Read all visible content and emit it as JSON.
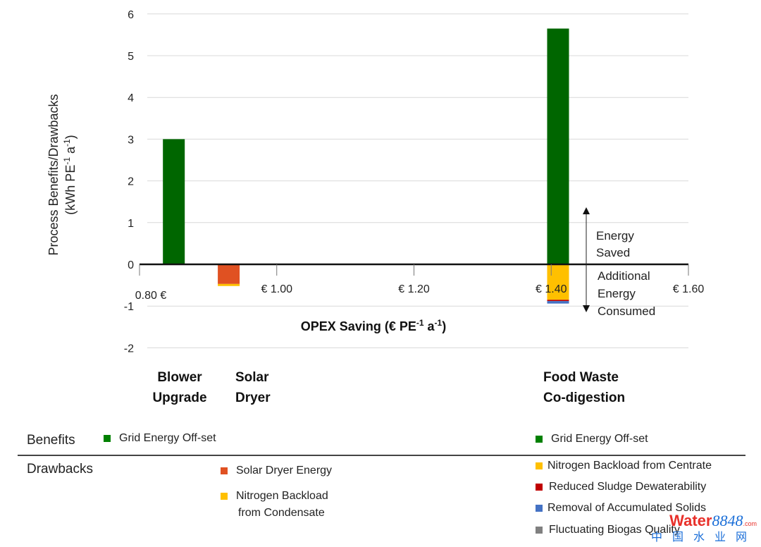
{
  "chart_data": {
    "type": "bar",
    "stacked": true,
    "title": "",
    "xlabel": "OPEX Saving  (€  PE⁻¹ a⁻¹)",
    "xlabel_parts": {
      "main": "OPEX Saving  (€  PE",
      "sup1": "-1",
      "mid": " a",
      "sup2": "-1",
      "end": ")"
    },
    "ylabel_line1": "Process Benefits/Drawbacks",
    "ylabel_line2_parts": {
      "main": "(kWh PE",
      "sup1": "-1",
      "mid": " a",
      "sup2": "-1",
      "end": ")"
    },
    "ylim": [
      -2,
      6
    ],
    "xlim": [
      0.8,
      1.6
    ],
    "yticks": [
      "6",
      "5",
      "4",
      "3",
      "2",
      "1",
      "0",
      "-1",
      "-2"
    ],
    "ytick_values": [
      6,
      5,
      4,
      3,
      2,
      1,
      0,
      -1,
      -2
    ],
    "xticks": [
      "0.80 €",
      "€ 1.00",
      "€ 1.20",
      "€ 1.40",
      "€ 1.60"
    ],
    "xtick_values": [
      0.8,
      1.0,
      1.2,
      1.4,
      1.6
    ],
    "grid": true,
    "categories": [
      "Blower Upgrade",
      "Solar Dryer",
      "Food Waste Co-digestion"
    ],
    "category_labels": [
      [
        "Blower",
        "Upgrade"
      ],
      [
        "Solar",
        "Dryer"
      ],
      [
        "Food Waste",
        "Co-digestion"
      ]
    ],
    "x": [
      0.85,
      0.93,
      1.41
    ],
    "series": [
      {
        "name": "Grid Energy Off-set",
        "color": "#006600",
        "values": [
          3.0,
          0,
          5.65
        ]
      },
      {
        "name": "Solar Dryer Energy",
        "color": "#e05122",
        "values": [
          0,
          -0.47,
          0
        ]
      },
      {
        "name": "Nitrogen Backload from Condensate",
        "color": "#ffc000",
        "values": [
          0,
          -0.05,
          0
        ]
      },
      {
        "name": "Nitrogen Backload from Centrate",
        "color": "#ffc000",
        "values": [
          0,
          0,
          -0.85
        ]
      },
      {
        "name": "Reduced Sludge Dewaterability",
        "color": "#c00000",
        "values": [
          0,
          0,
          -0.03
        ]
      },
      {
        "name": "Removal of Accumulated Solids",
        "color": "#4472c4",
        "values": [
          0,
          0,
          -0.06
        ]
      },
      {
        "name": "Fluctuating Biogas Quality",
        "color": "#808080",
        "values": [
          0,
          0,
          0
        ]
      }
    ],
    "annotations": {
      "up": [
        "Energy",
        "Saved"
      ],
      "down": [
        "Additional",
        "Energy",
        "Consumed"
      ]
    }
  },
  "legend": {
    "benefits_label": "Benefits",
    "drawbacks_label": "Drawbacks",
    "left_benefits": [
      {
        "label": "Grid Energy Off-set",
        "color": "#008000"
      }
    ],
    "mid_drawbacks": [
      {
        "label": "Solar Dryer Energy",
        "color": "#e05122"
      },
      {
        "label_line1": "Nitrogen Backload",
        "label_line2": "from Condensate",
        "color": "#ffc000"
      }
    ],
    "right_benefits": [
      {
        "label": "Grid Energy Off-set",
        "color": "#008000"
      }
    ],
    "right_drawbacks": [
      {
        "label": "Nitrogen Backload from Centrate",
        "color": "#ffc000"
      },
      {
        "label": "Reduced Sludge Dewaterability",
        "color": "#c00000"
      },
      {
        "label": "Removal of Accumulated Solids",
        "color": "#4472c4"
      },
      {
        "label": "Fluctuating Biogas Quality",
        "color": "#808080"
      }
    ]
  },
  "watermark": {
    "part1": "Water",
    "part2": "8848",
    "part3": ".com",
    "line2": "中国水业网"
  }
}
